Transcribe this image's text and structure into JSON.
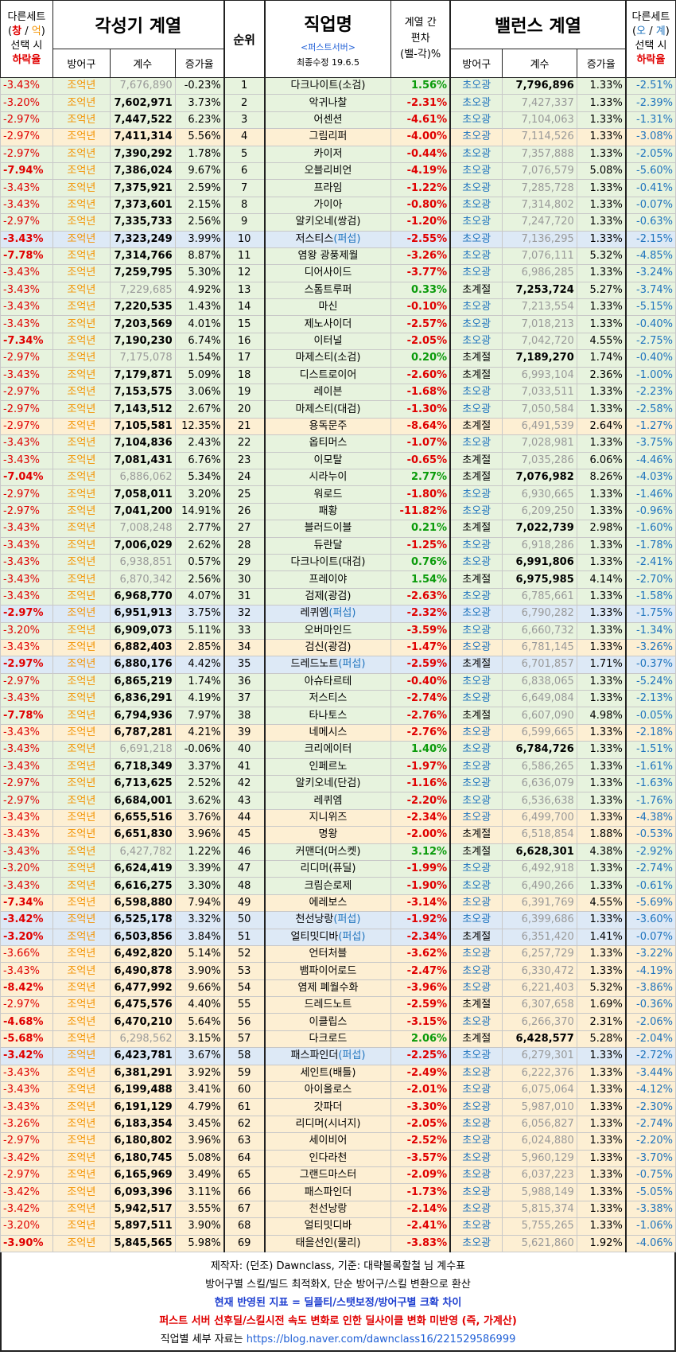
{
  "header": {
    "left_note": [
      "다른세트",
      "(창 / 억)",
      "선택 시",
      "하락율"
    ],
    "left_note_a": "다른세트",
    "left_note_b1": "(",
    "left_note_b2": "창",
    "left_note_b3": " / ",
    "left_note_b4": "억",
    "left_note_b5": ")",
    "left_note_c": "선택 시",
    "left_note_d": "하락율",
    "awaken_title": "각성기 계열",
    "col_def": "방어구",
    "col_coef": "계수",
    "col_rate": "증가율",
    "rank": "순위",
    "job_title": "직업명",
    "server": "<퍼스트서버>",
    "updated": "최종수정 19.6.5",
    "dev_l1": "계열 간",
    "dev_l2": "편차",
    "dev_l3": "(밸-각)%",
    "balance_title": "밸런스 계열",
    "right_a": "다른세트",
    "right_b1": "(",
    "right_b2": "오",
    "right_b3": " / ",
    "right_b4": "계",
    "right_b5": ")",
    "right_c": "선택 시",
    "right_d": "하락율"
  },
  "rows": [
    [
      "-3.43%",
      "조억년",
      "7,676,890",
      "-0.23%",
      "1",
      "다크나이트(소검)",
      "1.56%",
      "초오광",
      "7,796,896",
      "1.33%",
      "-2.51%",
      "g",
      "b",
      "g"
    ],
    [
      "-3.20%",
      "조억년",
      "7,602,971",
      "3.73%",
      "2",
      "악귀나찰",
      "-2.31%",
      "초오광",
      "7,427,337",
      "1.33%",
      "-2.39%",
      "g",
      "a",
      "r"
    ],
    [
      "-2.97%",
      "조억년",
      "7,447,522",
      "6.23%",
      "3",
      "어센션",
      "-4.61%",
      "초오광",
      "7,104,063",
      "1.33%",
      "-1.31%",
      "g",
      "a",
      "r"
    ],
    [
      "-2.97%",
      "조억년",
      "7,411,314",
      "5.56%",
      "4",
      "그림리퍼",
      "-4.00%",
      "초오광",
      "7,114,526",
      "1.33%",
      "-3.08%",
      "o",
      "a",
      "r"
    ],
    [
      "-2.97%",
      "조억년",
      "7,390,292",
      "1.78%",
      "5",
      "카이저",
      "-0.44%",
      "초오광",
      "7,357,888",
      "1.33%",
      "-2.05%",
      "g",
      "a",
      "r"
    ],
    [
      "-7.94%",
      "조억년",
      "7,386,024",
      "9.67%",
      "6",
      "오블리비언",
      "-4.19%",
      "초오광",
      "7,076,579",
      "5.08%",
      "-5.60%",
      "g",
      "a",
      "r"
    ],
    [
      "-3.43%",
      "조억년",
      "7,375,921",
      "2.59%",
      "7",
      "프라임",
      "-1.22%",
      "초오광",
      "7,285,728",
      "1.33%",
      "-0.41%",
      "g",
      "a",
      "r"
    ],
    [
      "-3.43%",
      "조억년",
      "7,373,601",
      "2.15%",
      "8",
      "가이아",
      "-0.80%",
      "초오광",
      "7,314,802",
      "1.33%",
      "-0.07%",
      "g",
      "a",
      "r"
    ],
    [
      "-2.97%",
      "조억년",
      "7,335,733",
      "2.56%",
      "9",
      "알키오네(쌍검)",
      "-1.20%",
      "초오광",
      "7,247,720",
      "1.33%",
      "-0.63%",
      "g",
      "a",
      "r"
    ],
    [
      "-3.43%",
      "조억년",
      "7,323,249",
      "3.99%",
      "10",
      "저스티스(퍼섭)",
      "-2.55%",
      "초오광",
      "7,136,295",
      "1.33%",
      "-2.15%",
      "b",
      "a",
      "r"
    ],
    [
      "-7.78%",
      "조억년",
      "7,314,766",
      "8.87%",
      "11",
      "염왕 광풍제월",
      "-3.26%",
      "초오광",
      "7,076,111",
      "5.32%",
      "-4.85%",
      "g",
      "a",
      "r"
    ],
    [
      "-3.43%",
      "조억년",
      "7,259,795",
      "5.30%",
      "12",
      "디어사이드",
      "-3.77%",
      "초오광",
      "6,986,285",
      "1.33%",
      "-3.24%",
      "g",
      "a",
      "r"
    ],
    [
      "-3.43%",
      "조억년",
      "7,229,685",
      "4.92%",
      "13",
      "스톰트루퍼",
      "0.33%",
      "초계절",
      "7,253,724",
      "5.27%",
      "-3.74%",
      "g",
      "b",
      "g"
    ],
    [
      "-3.43%",
      "조억년",
      "7,220,535",
      "1.43%",
      "14",
      "마신",
      "-0.10%",
      "초오광",
      "7,213,554",
      "1.33%",
      "-5.15%",
      "g",
      "a",
      "r"
    ],
    [
      "-3.43%",
      "조억년",
      "7,203,569",
      "4.01%",
      "15",
      "제노사이더",
      "-2.57%",
      "초오광",
      "7,018,213",
      "1.33%",
      "-0.40%",
      "g",
      "a",
      "r"
    ],
    [
      "-7.34%",
      "조억년",
      "7,190,230",
      "6.74%",
      "16",
      "이터널",
      "-2.05%",
      "초오광",
      "7,042,720",
      "4.55%",
      "-2.75%",
      "g",
      "a",
      "r"
    ],
    [
      "-2.97%",
      "조억년",
      "7,175,078",
      "1.54%",
      "17",
      "마제스티(소검)",
      "0.20%",
      "초계절",
      "7,189,270",
      "1.74%",
      "-0.40%",
      "g",
      "b",
      "g"
    ],
    [
      "-3.43%",
      "조억년",
      "7,179,871",
      "5.09%",
      "18",
      "디스트로이어",
      "-2.60%",
      "초계절",
      "6,993,104",
      "2.36%",
      "-1.00%",
      "g",
      "a",
      "r"
    ],
    [
      "-2.97%",
      "조억년",
      "7,153,575",
      "3.06%",
      "19",
      "레이븐",
      "-1.68%",
      "초오광",
      "7,033,511",
      "1.33%",
      "-2.23%",
      "g",
      "a",
      "r"
    ],
    [
      "-2.97%",
      "조억년",
      "7,143,512",
      "2.67%",
      "20",
      "마제스티(대검)",
      "-1.30%",
      "초오광",
      "7,050,584",
      "1.33%",
      "-2.58%",
      "g",
      "a",
      "r"
    ],
    [
      "-2.97%",
      "조억년",
      "7,105,581",
      "12.35%",
      "21",
      "용독문주",
      "-8.64%",
      "초계절",
      "6,491,539",
      "2.64%",
      "-1.27%",
      "o",
      "a",
      "r"
    ],
    [
      "-3.43%",
      "조억년",
      "7,104,836",
      "2.43%",
      "22",
      "옵티머스",
      "-1.07%",
      "초오광",
      "7,028,981",
      "1.33%",
      "-3.75%",
      "g",
      "a",
      "r"
    ],
    [
      "-3.43%",
      "조억년",
      "7,081,431",
      "6.76%",
      "23",
      "이모탈",
      "-0.65%",
      "초계절",
      "7,035,286",
      "6.06%",
      "-4.46%",
      "g",
      "a",
      "r"
    ],
    [
      "-7.04%",
      "조억년",
      "6,886,062",
      "5.34%",
      "24",
      "시라누이",
      "2.77%",
      "초계절",
      "7,076,982",
      "8.26%",
      "-4.03%",
      "g",
      "b",
      "g"
    ],
    [
      "-2.97%",
      "조억년",
      "7,058,011",
      "3.20%",
      "25",
      "워로드",
      "-1.80%",
      "초오광",
      "6,930,665",
      "1.33%",
      "-1.46%",
      "g",
      "a",
      "r"
    ],
    [
      "-2.97%",
      "조억년",
      "7,041,200",
      "14.91%",
      "26",
      "패황",
      "-11.82%",
      "초오광",
      "6,209,250",
      "1.33%",
      "-0.96%",
      "g",
      "a",
      "r"
    ],
    [
      "-3.43%",
      "조억년",
      "7,008,248",
      "2.77%",
      "27",
      "블러드이블",
      "0.21%",
      "초계절",
      "7,022,739",
      "2.98%",
      "-1.60%",
      "g",
      "b",
      "g"
    ],
    [
      "-3.43%",
      "조억년",
      "7,006,029",
      "2.62%",
      "28",
      "듀란달",
      "-1.25%",
      "초오광",
      "6,918,286",
      "1.33%",
      "-1.78%",
      "g",
      "a",
      "r"
    ],
    [
      "-3.43%",
      "조억년",
      "6,938,851",
      "0.57%",
      "29",
      "다크나이트(대검)",
      "0.76%",
      "초오광",
      "6,991,806",
      "1.33%",
      "-2.41%",
      "g",
      "b",
      "g"
    ],
    [
      "-3.43%",
      "조억년",
      "6,870,342",
      "2.56%",
      "30",
      "프레이야",
      "1.54%",
      "초계절",
      "6,975,985",
      "4.14%",
      "-2.70%",
      "g",
      "b",
      "g"
    ],
    [
      "-3.43%",
      "조억년",
      "6,968,770",
      "4.07%",
      "31",
      "검제(광검)",
      "-2.63%",
      "초오광",
      "6,785,661",
      "1.33%",
      "-1.58%",
      "g",
      "a",
      "r"
    ],
    [
      "-2.97%",
      "조억년",
      "6,951,913",
      "3.75%",
      "32",
      "레퀴엠(퍼섭)",
      "-2.32%",
      "초오광",
      "6,790,282",
      "1.33%",
      "-1.75%",
      "b",
      "a",
      "r"
    ],
    [
      "-3.20%",
      "조억년",
      "6,909,073",
      "5.11%",
      "33",
      "오버마인드",
      "-3.59%",
      "초오광",
      "6,660,732",
      "1.33%",
      "-1.34%",
      "g",
      "a",
      "r"
    ],
    [
      "-3.43%",
      "조억년",
      "6,882,403",
      "2.85%",
      "34",
      "검신(광검)",
      "-1.47%",
      "초오광",
      "6,781,145",
      "1.33%",
      "-3.26%",
      "o",
      "a",
      "r"
    ],
    [
      "-2.97%",
      "조억년",
      "6,880,176",
      "4.42%",
      "35",
      "드레드노트(퍼섭)",
      "-2.59%",
      "초계절",
      "6,701,857",
      "1.71%",
      "-0.37%",
      "b",
      "a",
      "r"
    ],
    [
      "-2.97%",
      "조억년",
      "6,865,219",
      "1.74%",
      "36",
      "아슈타르테",
      "-0.40%",
      "초오광",
      "6,838,065",
      "1.33%",
      "-5.24%",
      "g",
      "a",
      "r"
    ],
    [
      "-3.43%",
      "조억년",
      "6,836,291",
      "4.19%",
      "37",
      "저스티스",
      "-2.74%",
      "초오광",
      "6,649,084",
      "1.33%",
      "-2.13%",
      "g",
      "a",
      "r"
    ],
    [
      "-7.78%",
      "조억년",
      "6,794,936",
      "7.97%",
      "38",
      "타나토스",
      "-2.76%",
      "초계절",
      "6,607,090",
      "4.98%",
      "-0.05%",
      "g",
      "a",
      "r"
    ],
    [
      "-3.43%",
      "조억년",
      "6,787,281",
      "4.21%",
      "39",
      "네메시스",
      "-2.76%",
      "초오광",
      "6,599,665",
      "1.33%",
      "-2.18%",
      "o",
      "a",
      "r"
    ],
    [
      "-3.43%",
      "조억년",
      "6,691,218",
      "-0.06%",
      "40",
      "크리에이터",
      "1.40%",
      "초오광",
      "6,784,726",
      "1.33%",
      "-1.51%",
      "g",
      "b",
      "g"
    ],
    [
      "-3.43%",
      "조억년",
      "6,718,349",
      "3.37%",
      "41",
      "인페르노",
      "-1.97%",
      "초오광",
      "6,586,265",
      "1.33%",
      "-1.61%",
      "g",
      "a",
      "r"
    ],
    [
      "-2.97%",
      "조억년",
      "6,713,625",
      "2.52%",
      "42",
      "알키오네(단검)",
      "-1.16%",
      "초오광",
      "6,636,079",
      "1.33%",
      "-1.63%",
      "g",
      "a",
      "r"
    ],
    [
      "-2.97%",
      "조억년",
      "6,684,001",
      "3.62%",
      "43",
      "레퀴엠",
      "-2.20%",
      "초오광",
      "6,536,638",
      "1.33%",
      "-1.76%",
      "g",
      "a",
      "r"
    ],
    [
      "-3.43%",
      "조억년",
      "6,655,516",
      "3.76%",
      "44",
      "지니위즈",
      "-2.34%",
      "초오광",
      "6,499,700",
      "1.33%",
      "-4.38%",
      "o",
      "a",
      "r"
    ],
    [
      "-3.43%",
      "조억년",
      "6,651,830",
      "3.96%",
      "45",
      "명왕",
      "-2.00%",
      "초계절",
      "6,518,854",
      "1.88%",
      "-0.53%",
      "o",
      "a",
      "r"
    ],
    [
      "-3.43%",
      "조억년",
      "6,427,782",
      "1.22%",
      "46",
      "커맨더(머스켓)",
      "3.12%",
      "초계절",
      "6,628,301",
      "4.38%",
      "-2.92%",
      "g",
      "b",
      "g"
    ],
    [
      "-3.20%",
      "조억년",
      "6,624,419",
      "3.39%",
      "47",
      "리디머(퓨딜)",
      "-1.99%",
      "초오광",
      "6,492,918",
      "1.33%",
      "-2.74%",
      "g",
      "a",
      "r"
    ],
    [
      "-3.43%",
      "조억년",
      "6,616,275",
      "3.30%",
      "48",
      "크림슨로제",
      "-1.90%",
      "초오광",
      "6,490,266",
      "1.33%",
      "-0.61%",
      "g",
      "a",
      "r"
    ],
    [
      "-7.34%",
      "조억년",
      "6,598,880",
      "7.94%",
      "49",
      "에레보스",
      "-3.14%",
      "초오광",
      "6,391,769",
      "4.55%",
      "-5.69%",
      "o",
      "a",
      "r"
    ],
    [
      "-3.42%",
      "조억년",
      "6,525,178",
      "3.32%",
      "50",
      "천선낭랑(퍼섭)",
      "-1.92%",
      "초오광",
      "6,399,686",
      "1.33%",
      "-3.60%",
      "b",
      "a",
      "r"
    ],
    [
      "-3.20%",
      "조억년",
      "6,503,856",
      "3.84%",
      "51",
      "얼티밋디바(퍼섭)",
      "-2.34%",
      "초계절",
      "6,351,420",
      "1.41%",
      "-0.07%",
      "b",
      "a",
      "r"
    ],
    [
      "-3.66%",
      "조억년",
      "6,492,820",
      "5.14%",
      "52",
      "언터처블",
      "-3.62%",
      "초오광",
      "6,257,729",
      "1.33%",
      "-3.22%",
      "o",
      "a",
      "r"
    ],
    [
      "-3.43%",
      "조억년",
      "6,490,878",
      "3.90%",
      "53",
      "뱀파이어로드",
      "-2.47%",
      "초오광",
      "6,330,472",
      "1.33%",
      "-4.19%",
      "o",
      "a",
      "r"
    ],
    [
      "-8.42%",
      "조억년",
      "6,477,992",
      "9.66%",
      "54",
      "염제 폐월수화",
      "-3.96%",
      "초오광",
      "6,221,403",
      "5.32%",
      "-3.86%",
      "o",
      "a",
      "r"
    ],
    [
      "-2.97%",
      "조억년",
      "6,475,576",
      "4.40%",
      "55",
      "드레드노트",
      "-2.59%",
      "초계절",
      "6,307,658",
      "1.69%",
      "-0.36%",
      "o",
      "a",
      "r"
    ],
    [
      "-4.68%",
      "조억년",
      "6,470,210",
      "5.64%",
      "56",
      "이클립스",
      "-3.15%",
      "초오광",
      "6,266,370",
      "2.31%",
      "-2.06%",
      "o",
      "a",
      "r"
    ],
    [
      "-5.68%",
      "조억년",
      "6,298,562",
      "3.15%",
      "57",
      "다크로드",
      "2.06%",
      "초계절",
      "6,428,577",
      "5.28%",
      "-2.04%",
      "o",
      "b",
      "g"
    ],
    [
      "-3.42%",
      "조억년",
      "6,423,781",
      "3.67%",
      "58",
      "패스파인더(퍼섭)",
      "-2.25%",
      "초오광",
      "6,279,301",
      "1.33%",
      "-2.72%",
      "b",
      "a",
      "r"
    ],
    [
      "-3.43%",
      "조억년",
      "6,381,291",
      "3.92%",
      "59",
      "세인트(배틀)",
      "-2.49%",
      "초오광",
      "6,222,376",
      "1.33%",
      "-3.44%",
      "o",
      "a",
      "r"
    ],
    [
      "-3.43%",
      "조억년",
      "6,199,488",
      "3.41%",
      "60",
      "아이올로스",
      "-2.01%",
      "초오광",
      "6,075,064",
      "1.33%",
      "-4.12%",
      "o",
      "a",
      "r"
    ],
    [
      "-3.43%",
      "조억년",
      "6,191,129",
      "4.79%",
      "61",
      "갓파더",
      "-3.30%",
      "초오광",
      "5,987,010",
      "1.33%",
      "-2.30%",
      "o",
      "a",
      "r"
    ],
    [
      "-3.26%",
      "조억년",
      "6,183,354",
      "3.45%",
      "62",
      "리디머(시너지)",
      "-2.05%",
      "초오광",
      "6,056,827",
      "1.33%",
      "-2.74%",
      "o",
      "a",
      "r"
    ],
    [
      "-2.97%",
      "조억년",
      "6,180,802",
      "3.96%",
      "63",
      "세이비어",
      "-2.52%",
      "초오광",
      "6,024,880",
      "1.33%",
      "-2.20%",
      "o",
      "a",
      "r"
    ],
    [
      "-3.42%",
      "조억년",
      "6,180,745",
      "5.08%",
      "64",
      "인다라천",
      "-3.57%",
      "초오광",
      "5,960,129",
      "1.33%",
      "-3.70%",
      "o",
      "a",
      "r"
    ],
    [
      "-2.97%",
      "조억년",
      "6,165,969",
      "3.49%",
      "65",
      "그랜드마스터",
      "-2.09%",
      "초오광",
      "6,037,223",
      "1.33%",
      "-0.75%",
      "o",
      "a",
      "r"
    ],
    [
      "-3.42%",
      "조억년",
      "6,093,396",
      "3.11%",
      "66",
      "패스파인더",
      "-1.73%",
      "초오광",
      "5,988,149",
      "1.33%",
      "-5.05%",
      "o",
      "a",
      "r"
    ],
    [
      "-3.42%",
      "조억년",
      "5,942,517",
      "3.55%",
      "67",
      "천선낭랑",
      "-2.14%",
      "초오광",
      "5,815,374",
      "1.33%",
      "-3.38%",
      "o",
      "a",
      "r"
    ],
    [
      "-3.20%",
      "조억년",
      "5,897,511",
      "3.90%",
      "68",
      "얼티밋디바",
      "-2.41%",
      "초오광",
      "5,755,265",
      "1.33%",
      "-1.06%",
      "o",
      "a",
      "r"
    ],
    [
      "-3.90%",
      "조억년",
      "5,845,565",
      "5.98%",
      "69",
      "태을선인(물리)",
      "-3.83%",
      "초오광",
      "5,621,860",
      "1.92%",
      "-4.06%",
      "o",
      "a",
      "r"
    ]
  ],
  "footer": {
    "line1": "제작자: (던조) Dawnclass, 기준: 대략볼록할철 님 계수표",
    "line2": "방어구별 스킬/빌드 최적화X, 단순 방어구/스킬 변환으로 환산",
    "line3": "현재 반영된 지표 = 딜플티/스탯보정/방어구별 크확 차이",
    "line4": "퍼스트 서버 선후딜/스킬시전 속도 변화로 인한 딜사이클 변화 미반영 (즉, 가계산)",
    "line5_label": "직업별 세부 자료는 ",
    "line5_url": "https://blog.naver.com/dawnclass16/221529586999"
  },
  "colors": {
    "orange_row": "#fdefd3",
    "green_row": "#e7f3de",
    "blue_row": "#dde9f6",
    "red_text": "#e00000",
    "green_text": "#0a9b0a",
    "orange_text": "#f39200",
    "blue_text": "#1e73be"
  }
}
